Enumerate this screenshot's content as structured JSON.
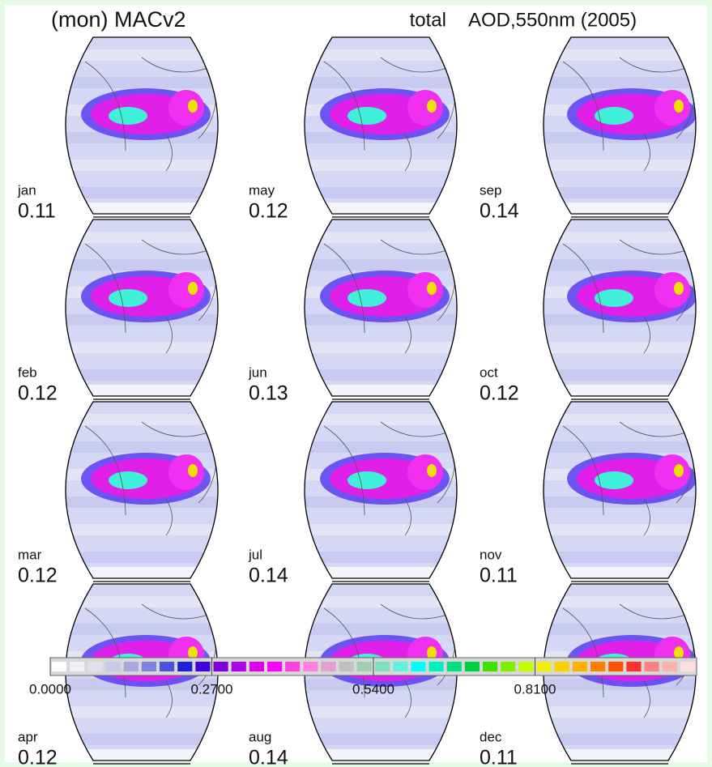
{
  "header": {
    "left": "(mon) MACv2",
    "middle": "total",
    "right": "AOD,550nm (2005)"
  },
  "panels": [
    {
      "month": "jan",
      "value": 0.11
    },
    {
      "month": "feb",
      "value": 0.12
    },
    {
      "month": "mar",
      "value": 0.12
    },
    {
      "month": "apr",
      "value": 0.12
    },
    {
      "month": "may",
      "value": 0.12
    },
    {
      "month": "jun",
      "value": 0.13
    },
    {
      "month": "jul",
      "value": 0.14
    },
    {
      "month": "aug",
      "value": 0.14
    },
    {
      "month": "sep",
      "value": 0.14
    },
    {
      "month": "oct",
      "value": 0.12
    },
    {
      "month": "nov",
      "value": 0.11
    },
    {
      "month": "dec",
      "value": 0.11
    }
  ],
  "colorbar": {
    "lim": [
      0,
      1.08
    ],
    "ticks": [
      {
        "value": 0,
        "label": "0.0000"
      },
      {
        "value": 0.27,
        "label": "0.2700"
      },
      {
        "value": 0.54,
        "label": "0.5400"
      },
      {
        "value": 0.81,
        "label": "0.8100"
      }
    ],
    "colors": [
      "#ffffff",
      "#f0f0f8",
      "#e0e0f0",
      "#c8c8e8",
      "#a8a8e0",
      "#8080e0",
      "#5050e0",
      "#2020d8",
      "#4000e0",
      "#8000e0",
      "#b000e8",
      "#e000e8",
      "#ff00ff",
      "#ff40e0",
      "#ff80e0",
      "#e0a0d0",
      "#c0c0c0",
      "#a0d0b0",
      "#80e0c0",
      "#60f0e0",
      "#00ffff",
      "#00f0c0",
      "#00e080",
      "#00d040",
      "#40e000",
      "#80f000",
      "#c0ff00",
      "#f0f000",
      "#ffd000",
      "#ffb000",
      "#ff8000",
      "#ff5000",
      "#ff3030",
      "#ff8080",
      "#ffb0b0",
      "#ffe0e0"
    ]
  }
}
